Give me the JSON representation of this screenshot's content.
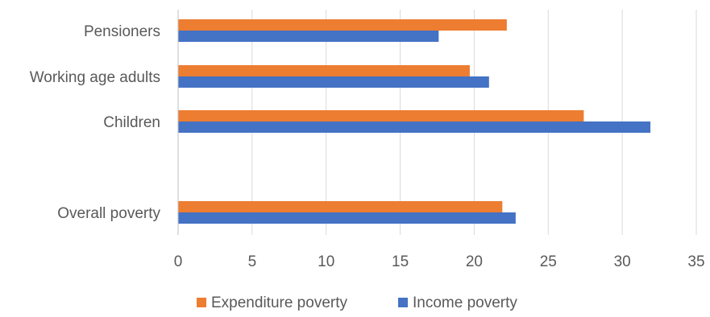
{
  "chart_data": {
    "type": "bar",
    "orientation": "horizontal",
    "categories": [
      "Pensioners",
      "Working age adults",
      "Children",
      "",
      "Overall poverty"
    ],
    "series": [
      {
        "name": "Expenditure poverty",
        "color": "#ED7D31",
        "values": [
          22.2,
          19.7,
          27.4,
          null,
          21.9
        ]
      },
      {
        "name": "Income poverty",
        "color": "#4472C4",
        "values": [
          17.6,
          21.0,
          31.9,
          null,
          22.8
        ]
      }
    ],
    "xlim": [
      0,
      35
    ],
    "xticks": [
      "0",
      "5",
      "10",
      "15",
      "20",
      "25",
      "30",
      "35"
    ],
    "grid": true,
    "legend_position": "bottom"
  }
}
